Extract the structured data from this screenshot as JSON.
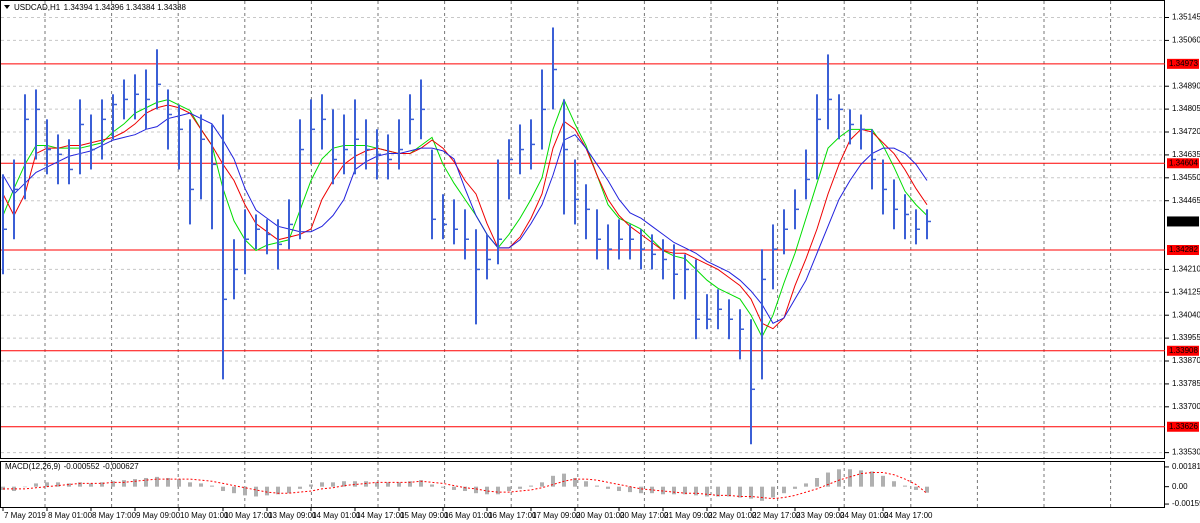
{
  "chart_data": {
    "type": "ohlc",
    "title": "USDCAD,H1",
    "subtitle": "1.34394 1.34396 1.34384 1.34388",
    "bar_color": "#3b5fd6",
    "categories": [
      "7 May 2019",
      null,
      null,
      null,
      "8 May 01:00",
      null,
      null,
      null,
      "8 May 17:00",
      null,
      null,
      null,
      "9 May 09:00",
      null,
      null,
      null,
      "10 May 01:00",
      null,
      null,
      null,
      "10 May 17:00",
      null,
      null,
      null,
      "13 May 09:00",
      null,
      null,
      null,
      "14 May 01:00",
      null,
      null,
      null,
      "14 May 17:00",
      null,
      null,
      null,
      "15 May 09:00",
      null,
      null,
      null,
      "16 May 01:00",
      null,
      null,
      null,
      "16 May 17:00",
      null,
      null,
      null,
      "17 May 09:00",
      null,
      null,
      null,
      "20 May 01:00",
      null,
      null,
      null,
      "20 May 17:00",
      null,
      null,
      null,
      "21 May 09:00",
      null,
      null,
      null,
      "22 May 01:00",
      null,
      null,
      null,
      "22 May 17:00",
      null,
      null,
      null,
      "23 May 09:00",
      null,
      null,
      null,
      "24 May 01:00",
      null,
      null,
      null,
      "24 May 17:00",
      null,
      null,
      null,
      null
    ],
    "high": [
      1.34563,
      1.34618,
      1.3486,
      1.34878,
      1.34767,
      1.34711,
      1.34693,
      1.34841,
      1.34785,
      1.34841,
      1.3486,
      1.34915,
      1.34934,
      1.34952,
      1.35027,
      1.34878,
      1.34822,
      1.34767,
      1.34785,
      1.34748,
      1.34785,
      1.34322,
      1.34433,
      1.34414,
      1.34396,
      1.34396,
      1.3447,
      1.34767,
      1.34841,
      1.3486,
      1.34804,
      1.34785,
      1.34841,
      1.34767,
      1.3473,
      1.34711,
      1.34767,
      1.3486,
      1.34915,
      1.34655,
      1.34489,
      1.3447,
      1.34433,
      1.34359,
      1.3434,
      1.34618,
      1.34693,
      1.34748,
      1.34767,
      1.34952,
      1.35108,
      1.34841,
      1.34618,
      1.34526,
      1.34433,
      1.34377,
      1.34396,
      1.34377,
      1.34359,
      1.3434,
      1.34322,
      1.34303,
      1.34266,
      1.34247,
      1.34118,
      1.34136,
      1.34099,
      1.34062,
      1.34025,
      1.34285,
      1.34377,
      1.34433,
      1.34507,
      1.34655,
      1.3486,
      1.35008,
      1.3486,
      1.34804,
      1.34785,
      1.3473,
      1.34618,
      1.34544,
      1.34489,
      1.34433,
      1.34433
    ],
    "low": [
      1.34192,
      1.34322,
      1.3447,
      1.34618,
      1.34563,
      1.34526,
      1.34526,
      1.34563,
      1.34581,
      1.34618,
      1.34693,
      1.34767,
      1.34767,
      1.3473,
      1.34804,
      1.34655,
      1.34581,
      1.34377,
      1.3447,
      1.34359,
      1.33802,
      1.34099,
      1.34192,
      1.34285,
      1.34266,
      1.3421,
      1.34285,
      1.34322,
      1.346,
      1.34655,
      1.34526,
      1.34563,
      1.34563,
      1.34581,
      1.34544,
      1.34544,
      1.34581,
      1.34674,
      1.34693,
      1.34322,
      1.34322,
      1.34303,
      1.34247,
      1.34006,
      1.34173,
      1.34229,
      1.3447,
      1.34563,
      1.34581,
      1.34655,
      1.34804,
      1.34414,
      1.34377,
      1.34322,
      1.34247,
      1.3421,
      1.34247,
      1.34247,
      1.3421,
      1.3421,
      1.34173,
      1.34099,
      1.34099,
      1.33951,
      1.33988,
      1.33988,
      1.33951,
      1.33876,
      1.33561,
      1.33802,
      1.34136,
      1.34266,
      1.34359,
      1.3447,
      1.34544,
      1.3473,
      1.34693,
      1.34674,
      1.34655,
      1.34507,
      1.34414,
      1.34359,
      1.34322,
      1.34303,
      1.34322
    ],
    "close": [
      1.34359,
      1.34507,
      1.34767,
      1.34804,
      1.34655,
      1.34637,
      1.34581,
      1.34748,
      1.34655,
      1.34767,
      1.34822,
      1.34841,
      1.3486,
      1.34841,
      1.34897,
      1.34785,
      1.3473,
      1.34507,
      1.34693,
      1.346,
      1.34099,
      1.3421,
      1.34322,
      1.34359,
      1.3434,
      1.34303,
      1.34377,
      1.34655,
      1.3473,
      1.34767,
      1.34618,
      1.34655,
      1.34693,
      1.34655,
      1.34637,
      1.34618,
      1.34655,
      1.34767,
      1.34804,
      1.34396,
      1.34377,
      1.34359,
      1.34322,
      1.3421,
      1.34247,
      1.34322,
      1.34618,
      1.34655,
      1.34674,
      1.34804,
      1.34952,
      1.34655,
      1.3447,
      1.34433,
      1.34322,
      1.34285,
      1.34322,
      1.34322,
      1.34285,
      1.34266,
      1.34247,
      1.34192,
      1.3421,
      1.34025,
      1.34025,
      1.34062,
      1.34025,
      1.33988,
      1.33765,
      1.34173,
      1.34285,
      1.34359,
      1.34433,
      1.34544,
      1.34767,
      1.34841,
      1.34804,
      1.34748,
      1.3473,
      1.34618,
      1.34507,
      1.34433,
      1.34414,
      1.34359,
      1.34388
    ],
    "moving_averages": [
      {
        "color": "#00dd00",
        "values": [
          1.3441,
          1.3451,
          1.346,
          1.3467,
          1.3467,
          1.3466,
          1.3466,
          1.3466,
          1.3467,
          1.3468,
          1.3472,
          1.3475,
          1.3479,
          1.3481,
          1.3483,
          1.3484,
          1.3482,
          1.348,
          1.3473,
          1.3467,
          1.3451,
          1.3439,
          1.3432,
          1.3428,
          1.343,
          1.3431,
          1.3432,
          1.3443,
          1.3454,
          1.3462,
          1.3466,
          1.3467,
          1.3467,
          1.3467,
          1.3466,
          1.3465,
          1.3464,
          1.3464,
          1.3467,
          1.347,
          1.346,
          1.3453,
          1.3447,
          1.3441,
          1.3434,
          1.3429,
          1.3434,
          1.344,
          1.3447,
          1.3455,
          1.3473,
          1.3484,
          1.3475,
          1.3467,
          1.3456,
          1.3445,
          1.344,
          1.3438,
          1.3436,
          1.3432,
          1.3428,
          1.3426,
          1.3425,
          1.3421,
          1.3417,
          1.3414,
          1.3412,
          1.341,
          1.3404,
          1.3396,
          1.3404,
          1.3416,
          1.3427,
          1.344,
          1.3453,
          1.3466,
          1.347,
          1.3473,
          1.3473,
          1.3473,
          1.3467,
          1.3459,
          1.345,
          1.3445,
          1.3441
        ]
      },
      {
        "color": "#ee0000",
        "values": [
          1.3449,
          1.3441,
          1.3449,
          1.3464,
          1.3466,
          1.3466,
          1.3467,
          1.3467,
          1.3468,
          1.3469,
          1.347,
          1.3472,
          1.3475,
          1.3479,
          1.3481,
          1.3482,
          1.3481,
          1.3479,
          1.3473,
          1.3467,
          1.346,
          1.3454,
          1.3445,
          1.3438,
          1.3435,
          1.3432,
          1.3433,
          1.3434,
          1.3436,
          1.3447,
          1.3454,
          1.346,
          1.3463,
          1.3465,
          1.3466,
          1.3465,
          1.3464,
          1.3464,
          1.3466,
          1.3469,
          1.3466,
          1.3461,
          1.3454,
          1.3449,
          1.3438,
          1.3429,
          1.3429,
          1.3433,
          1.344,
          1.3449,
          1.3466,
          1.3476,
          1.3473,
          1.3466,
          1.3456,
          1.3447,
          1.3441,
          1.3437,
          1.3434,
          1.3431,
          1.3428,
          1.3427,
          1.3427,
          1.3425,
          1.3423,
          1.3421,
          1.3418,
          1.3415,
          1.341,
          1.3401,
          1.3399,
          1.3403,
          1.3415,
          1.3425,
          1.3436,
          1.3449,
          1.346,
          1.3469,
          1.3473,
          1.3472,
          1.3468,
          1.3464,
          1.3458,
          1.3451,
          1.3445
        ]
      },
      {
        "color": "#2222dd",
        "values": [
          1.3456,
          1.3449,
          1.3453,
          1.3457,
          1.3459,
          1.3461,
          1.3463,
          1.3464,
          1.3465,
          1.3467,
          1.3469,
          1.347,
          1.3471,
          1.3473,
          1.3474,
          1.3477,
          1.3478,
          1.3479,
          1.3477,
          1.3475,
          1.3469,
          1.3462,
          1.3451,
          1.3443,
          1.344,
          1.3437,
          1.3436,
          1.3435,
          1.3435,
          1.3437,
          1.3441,
          1.3447,
          1.3458,
          1.3461,
          1.3463,
          1.3464,
          1.3464,
          1.3465,
          1.3466,
          1.3466,
          1.3465,
          1.3462,
          1.3451,
          1.3441,
          1.3434,
          1.3429,
          1.3429,
          1.3432,
          1.3438,
          1.3445,
          1.3456,
          1.3469,
          1.3471,
          1.3466,
          1.346,
          1.3454,
          1.3447,
          1.3442,
          1.344,
          1.3437,
          1.3434,
          1.3431,
          1.3429,
          1.3427,
          1.3424,
          1.3422,
          1.342,
          1.3417,
          1.3413,
          1.3408,
          1.3401,
          1.3403,
          1.341,
          1.3417,
          1.3427,
          1.3437,
          1.3447,
          1.3454,
          1.346,
          1.3464,
          1.3466,
          1.3466,
          1.3464,
          1.346,
          1.3454
        ]
      }
    ],
    "levels": {
      "color": "#ff0000",
      "values": [
        1.34973,
        1.34604,
        1.34282,
        1.33908,
        1.33626
      ]
    },
    "ylim": [
      1.3351,
      1.3521
    ],
    "yticks": [
      1.35145,
      {
        "value": 1.3506,
        "label": "1.35060"
      },
      {
        "value": 1.3489,
        "label": "1.34890"
      },
      1.34805,
      {
        "value": 1.3472,
        "label": "1.34720"
      },
      1.34635,
      {
        "value": 1.3455,
        "label": "1.34550"
      },
      1.34465,
      {
        "value": 1.3421,
        "label": "1.34210"
      },
      1.34125,
      {
        "value": 1.3404,
        "label": "1.34040"
      },
      1.33955,
      {
        "value": 1.3387,
        "label": "1.33870"
      },
      1.33785,
      {
        "value": 1.337,
        "label": "1.33700"
      },
      {
        "value": 1.3353,
        "label": "1.33530"
      }
    ],
    "grid": true,
    "macd": {
      "title": "MACD(12,26,9)",
      "histogram_color": "#b0b0b0",
      "signal_color": "#ff0000",
      "values": [
        -0.0003,
        -0.0004,
        0.0,
        0.0003,
        0.0004,
        0.0004,
        0.0003,
        0.0004,
        0.0003,
        0.0004,
        0.0005,
        0.0006,
        0.0007,
        0.0008,
        0.0009,
        0.0008,
        0.0007,
        0.0004,
        0.0003,
        0.0001,
        -0.0004,
        -0.0006,
        -0.0008,
        -0.0009,
        -0.0008,
        -0.0007,
        -0.0006,
        -0.0002,
        0.0002,
        0.0004,
        0.0004,
        0.0005,
        0.0005,
        0.0005,
        0.0004,
        0.0004,
        0.0004,
        0.0005,
        0.0006,
        0.0002,
        -0.0001,
        -0.0003,
        -0.0004,
        -0.0006,
        -0.0007,
        -0.0007,
        -0.0004,
        -0.0002,
        0.0001,
        0.0004,
        0.001,
        0.0012,
        0.0008,
        0.0005,
        0.0001,
        -0.0002,
        -0.0004,
        -0.0005,
        -0.0006,
        -0.0006,
        -0.0007,
        -0.0007,
        -0.0007,
        -0.0008,
        -0.0009,
        -0.0009,
        -0.0009,
        -0.001,
        -0.0011,
        -0.0013,
        -0.001,
        -0.0006,
        -0.0002,
        0.0003,
        0.0008,
        0.0013,
        0.0016,
        0.0016,
        0.0015,
        0.0014,
        0.001,
        0.0005,
        0.0001,
        -0.0003,
        -0.000552
      ],
      "signal": [
        -0.0002,
        -0.0002,
        -0.0002,
        -0.0001,
        0.0,
        0.0001,
        0.0002,
        0.0003,
        0.0003,
        0.0003,
        0.0004,
        0.0004,
        0.0005,
        0.0006,
        0.0007,
        0.0007,
        0.0007,
        0.0007,
        0.0006,
        0.0005,
        0.0003,
        0.0001,
        -0.0001,
        -0.0003,
        -0.0005,
        -0.0006,
        -0.0006,
        -0.0005,
        -0.0004,
        -0.0002,
        -0.0001,
        0.0001,
        0.0002,
        0.0003,
        0.0004,
        0.0004,
        0.0004,
        0.0004,
        0.0005,
        0.0004,
        0.0003,
        0.0001,
        -0.0001,
        -0.0002,
        -0.0004,
        -0.0005,
        -0.0005,
        -0.0004,
        -0.0003,
        -0.0001,
        0.0002,
        0.0005,
        0.0007,
        0.0007,
        0.0006,
        0.0004,
        0.0002,
        0.0,
        -0.0002,
        -0.0003,
        -0.0004,
        -0.0005,
        -0.0006,
        -0.0006,
        -0.0007,
        -0.0008,
        -0.0008,
        -0.0009,
        -0.0009,
        -0.001,
        -0.0011,
        -0.001,
        -0.0008,
        -0.0005,
        -0.0002,
        0.0002,
        0.0006,
        0.0009,
        0.0012,
        0.0013,
        0.0013,
        0.0011,
        0.0007,
        0.0002,
        -0.000627
      ],
      "ylim": [
        -0.00187,
        0.00227
      ],
      "yticks": [
        0.001817,
        {
          "value": 0,
          "label": "0.00"
        },
        -0.001599
      ]
    }
  }
}
